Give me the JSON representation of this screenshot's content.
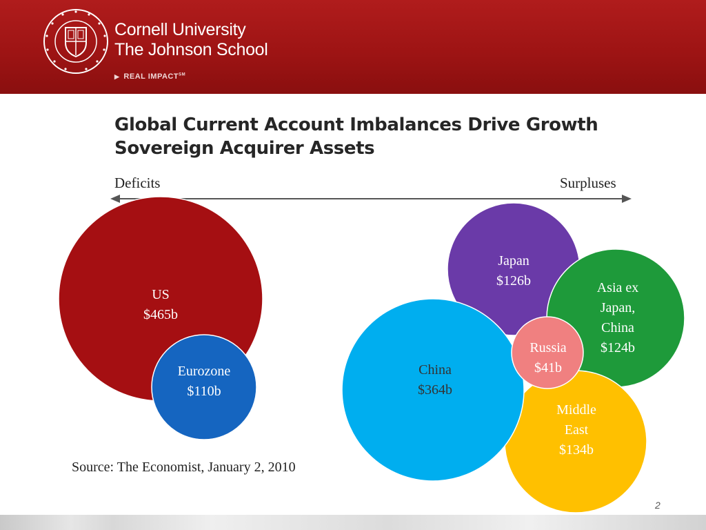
{
  "header": {
    "brand_line1": "Cornell University",
    "brand_line2": "The Johnson School",
    "tagline": "REAL IMPACT",
    "tagline_mark": "SM",
    "seal_text": "CORNELL UNIVERSITY FOUNDED A.D. 1865"
  },
  "slide": {
    "title_line1": "Global Current Account Imbalances Drive Growth",
    "title_line2": "Sovereign Acquirer Assets",
    "axis": {
      "left_label": "Deficits",
      "right_label": "Surpluses"
    },
    "source": "Source: The Economist, January 2, 2010",
    "page_number": "2"
  },
  "bubbles": [
    {
      "id": "us",
      "side": "deficit",
      "lines": [
        "US",
        "$465b"
      ],
      "region": "US",
      "value_billion_usd": 465,
      "color": "#a50f12",
      "text_color": "#ffffff"
    },
    {
      "id": "eurozone",
      "side": "deficit",
      "lines": [
        "Eurozone",
        "$110b"
      ],
      "region": "Eurozone",
      "value_billion_usd": 110,
      "color": "#1565c0",
      "text_color": "#ffffff"
    },
    {
      "id": "japan",
      "side": "surplus",
      "lines": [
        "Japan",
        "$126b"
      ],
      "region": "Japan",
      "value_billion_usd": 126,
      "color": "#6a3aa8",
      "text_color": "#ffffff"
    },
    {
      "id": "asia-ex-japan-china",
      "side": "surplus",
      "lines": [
        "Asia ex",
        "Japan,",
        "China",
        "$124b"
      ],
      "region": "Asia ex Japan, China",
      "value_billion_usd": 124,
      "color": "#1e9a3a",
      "text_color": "#ffffff"
    },
    {
      "id": "china",
      "side": "surplus",
      "lines": [
        "China",
        "$364b"
      ],
      "region": "China",
      "value_billion_usd": 364,
      "color": "#00aeef",
      "text_color": "#333333"
    },
    {
      "id": "russia",
      "side": "surplus",
      "lines": [
        "Russia",
        "$41b"
      ],
      "region": "Russia",
      "value_billion_usd": 41,
      "color": "#f08080",
      "text_color": "#ffffff"
    },
    {
      "id": "middle-east",
      "side": "surplus",
      "lines": [
        "Middle",
        "East",
        "$134b"
      ],
      "region": "Middle East",
      "value_billion_usd": 134,
      "color": "#ffc000",
      "text_color": "#ffffff"
    }
  ]
}
